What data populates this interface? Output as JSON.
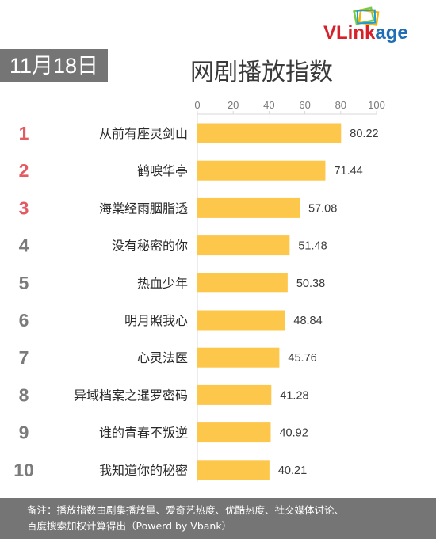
{
  "logo": {
    "part1": "VL",
    "part2": "ink",
    "part3": "age",
    "colors": {
      "red": "#d6202a",
      "blue": "#1f6fb5"
    }
  },
  "date": "11月18日",
  "title": "网剧播放指数",
  "footer": {
    "line1": "备注：播放指数由剧集播放量、爱奇艺热度、优酷热度、社交媒体讨论、",
    "line2": "百度搜索加权计算得出（Powerd by Vbank）"
  },
  "colors": {
    "bar": "#fdc74b",
    "rank_top": "#e45a62",
    "rank_other": "#7b7b7b",
    "header_bg": "#757575"
  },
  "chart_data": {
    "type": "bar",
    "orientation": "horizontal",
    "xlim": [
      0,
      100
    ],
    "xticks": [
      0,
      20,
      40,
      60,
      80,
      100
    ],
    "ranks": [
      "1",
      "2",
      "3",
      "4",
      "5",
      "6",
      "7",
      "8",
      "9",
      "10"
    ],
    "categories": [
      "从前有座灵剑山",
      "鹤唳华亭",
      "海棠经雨胭脂透",
      "没有秘密的你",
      "热血少年",
      "明月照我心",
      "心灵法医",
      "异域档案之暹罗密码",
      "谁的青春不叛逆",
      "我知道你的秘密"
    ],
    "values": [
      80.22,
      71.44,
      57.08,
      51.48,
      50.38,
      48.84,
      45.76,
      41.28,
      40.92,
      40.21
    ],
    "value_labels": [
      "80.22",
      "71.44",
      "57.08",
      "51.48",
      "50.38",
      "48.84",
      "45.76",
      "41.28",
      "40.92",
      "40.21"
    ]
  }
}
